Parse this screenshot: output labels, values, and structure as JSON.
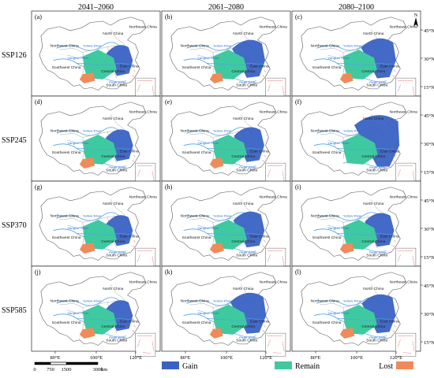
{
  "columns": [
    "2041–2060",
    "2061–2080",
    "2080–2100"
  ],
  "rows": [
    "SSP126",
    "SSP245",
    "SSP370",
    "SSP585"
  ],
  "panel_labels": [
    "(a)",
    "(b)",
    "(c)",
    "(d)",
    "(e)",
    "(f)",
    "(g)",
    "(h)",
    "(i)",
    "(j)",
    "(k)",
    "(l)"
  ],
  "lon_ticks": [
    "80°E",
    "100°E",
    "120°E"
  ],
  "lat_ticks": [
    "45°N",
    "30°N",
    "15°N"
  ],
  "north_arrow": "N",
  "scale_bar": {
    "ticks": [
      "0",
      "750",
      "1500",
      "3000"
    ],
    "unit": "km"
  },
  "legend": [
    {
      "label": "Gain",
      "color": "#3a62c4"
    },
    {
      "label": "Remain",
      "color": "#3fc9a0"
    },
    {
      "label": "Lost",
      "color": "#f08a5a"
    }
  ],
  "region_labels": {
    "northeast": "Northeast China",
    "north": "North China",
    "northwest": "Northwest China",
    "southwest": "Southwest China",
    "east": "East China",
    "south": "South China",
    "central": "Central China"
  },
  "river_labels": {
    "yangtze": "Yangtze River",
    "yellow": "Yellow River",
    "pearl": "Pearl River"
  },
  "colors": {
    "gain": "#3a62c4",
    "remain": "#3fc9a0",
    "lost": "#f08a5a",
    "river": "#4fa3e0",
    "outline": "#555555",
    "frame": "#000000"
  }
}
